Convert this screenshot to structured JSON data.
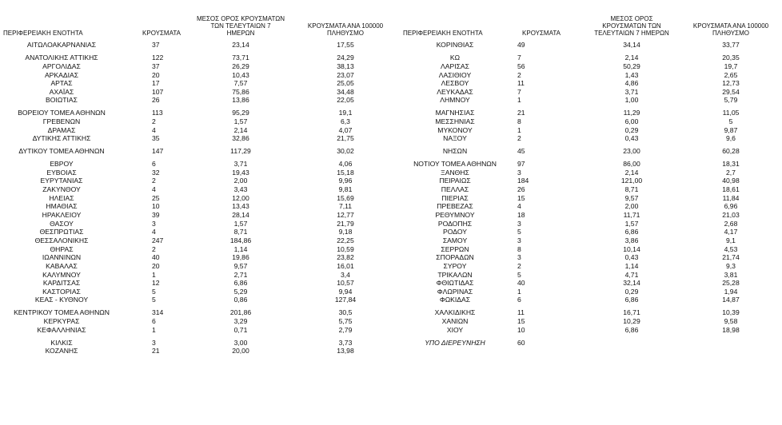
{
  "headers": {
    "name": "ΠΕΡΙΦΕΡΕΙΑΚΗ ΕΝΟΤΗΤΑ",
    "cases": "ΚΡΟΥΣΜΑΤΑ",
    "avg": "ΜΕΣΟΣ ΟΡΟΣ ΚΡΟΥΣΜΑΤΩΝ ΤΩΝ ΤΕΛΕΥΤΑΙΩΝ 7 ΗΜΕΡΩΝ",
    "per": "ΚΡΟΥΣΜΑΤΑ ΑΝΑ 100000 ΠΛΗΘΥΣΜΟ"
  },
  "left_rows": [
    {
      "name": "ΑΙΤΩΛΟΑΚΑΡΝΑΝΙΑΣ",
      "cases": "37",
      "avg": "23,14",
      "per": "17,55",
      "gap": true
    },
    {
      "name": "ΑΝΑΤΟΛΙΚΗΣ ΑΤΤΙΚΗΣ",
      "cases": "122",
      "avg": "73,71",
      "per": "24,29",
      "gap": true
    },
    {
      "name": "ΑΡΓΟΛΙΔΑΣ",
      "cases": "37",
      "avg": "26,29",
      "per": "38,13"
    },
    {
      "name": "ΑΡΚΑΔΙΑΣ",
      "cases": "20",
      "avg": "10,43",
      "per": "23,07"
    },
    {
      "name": "ΑΡΤΑΣ",
      "cases": "17",
      "avg": "7,57",
      "per": "25,05"
    },
    {
      "name": "ΑΧΑΪΑΣ",
      "cases": "107",
      "avg": "75,86",
      "per": "34,48"
    },
    {
      "name": "ΒΟΙΩΤΙΑΣ",
      "cases": "26",
      "avg": "13,86",
      "per": "22,05"
    },
    {
      "name": "ΒΟΡΕΙΟΥ ΤΟΜΕΑ ΑΘΗΝΩΝ",
      "cases": "113",
      "avg": "95,29",
      "per": "19,1",
      "gap": true
    },
    {
      "name": "ΓΡΕΒΕΝΩΝ",
      "cases": "2",
      "avg": "1,57",
      "per": "6,3"
    },
    {
      "name": "ΔΡΑΜΑΣ",
      "cases": "4",
      "avg": "2,14",
      "per": "4,07"
    },
    {
      "name": "ΔΥΤΙΚΗΣ ΑΤΤΙΚΗΣ",
      "cases": "35",
      "avg": "32,86",
      "per": "21,75"
    },
    {
      "name": "ΔΥΤΙΚΟΥ ΤΟΜΕΑ ΑΘΗΝΩΝ",
      "cases": "147",
      "avg": "117,29",
      "per": "30,02",
      "gap": true
    },
    {
      "name": "ΕΒΡΟΥ",
      "cases": "6",
      "avg": "3,71",
      "per": "4,06",
      "gap": true
    },
    {
      "name": "ΕΥΒΟΙΑΣ",
      "cases": "32",
      "avg": "19,43",
      "per": "15,18"
    },
    {
      "name": "ΕΥΡΥΤΑΝΙΑΣ",
      "cases": "2",
      "avg": "2,00",
      "per": "9,96"
    },
    {
      "name": "ΖΑΚΥΝΘΟΥ",
      "cases": "4",
      "avg": "3,43",
      "per": "9,81"
    },
    {
      "name": "ΗΛΕΙΑΣ",
      "cases": "25",
      "avg": "12,00",
      "per": "15,69"
    },
    {
      "name": "ΗΜΑΘΙΑΣ",
      "cases": "10",
      "avg": "13,43",
      "per": "7,11"
    },
    {
      "name": "ΗΡΑΚΛΕΙΟΥ",
      "cases": "39",
      "avg": "28,14",
      "per": "12,77"
    },
    {
      "name": "ΘΑΣΟΥ",
      "cases": "3",
      "avg": "1,57",
      "per": "21,79"
    },
    {
      "name": "ΘΕΣΠΡΩΤΙΑΣ",
      "cases": "4",
      "avg": "8,71",
      "per": "9,18"
    },
    {
      "name": "ΘΕΣΣΑΛΟΝΙΚΗΣ",
      "cases": "247",
      "avg": "184,86",
      "per": "22,25"
    },
    {
      "name": "ΘΗΡΑΣ",
      "cases": "2",
      "avg": "1,14",
      "per": "10,59"
    },
    {
      "name": "ΙΩΑΝΝΙΝΩΝ",
      "cases": "40",
      "avg": "19,86",
      "per": "23,82"
    },
    {
      "name": "ΚΑΒΑΛΑΣ",
      "cases": "20",
      "avg": "9,57",
      "per": "16,01"
    },
    {
      "name": "ΚΑΛΥΜΝΟΥ",
      "cases": "1",
      "avg": "2,71",
      "per": "3,4"
    },
    {
      "name": "ΚΑΡΔΙΤΣΑΣ",
      "cases": "12",
      "avg": "6,86",
      "per": "10,57"
    },
    {
      "name": "ΚΑΣΤΟΡΙΑΣ",
      "cases": "5",
      "avg": "5,29",
      "per": "9,94"
    },
    {
      "name": "ΚΕΑΣ - ΚΥΘΝΟΥ",
      "cases": "5",
      "avg": "0,86",
      "per": "127,84"
    },
    {
      "name": "ΚΕΝΤΡΙΚΟΥ ΤΟΜΕΑ ΑΘΗΝΩΝ",
      "cases": "314",
      "avg": "201,86",
      "per": "30,5",
      "gap": true
    },
    {
      "name": "ΚΕΡΚΥΡΑΣ",
      "cases": "6",
      "avg": "3,29",
      "per": "5,75"
    },
    {
      "name": "ΚΕΦΑΛΛΗΝΙΑΣ",
      "cases": "1",
      "avg": "0,71",
      "per": "2,79"
    },
    {
      "name": "ΚΙΛΚΙΣ",
      "cases": "3",
      "avg": "3,00",
      "per": "3,73",
      "gap": true
    },
    {
      "name": "ΚΟΖΑΝΗΣ",
      "cases": "21",
      "avg": "20,00",
      "per": "13,98"
    }
  ],
  "right_rows": [
    {
      "name": "ΚΟΡΙΝΘΙΑΣ",
      "cases": "49",
      "avg": "34,14",
      "per": "33,77",
      "gap": true
    },
    {
      "name": "ΚΩ",
      "cases": "7",
      "avg": "2,14",
      "per": "20,35",
      "gap": true
    },
    {
      "name": "ΛΑΡΙΣΑΣ",
      "cases": "56",
      "avg": "50,29",
      "per": "19,7"
    },
    {
      "name": "ΛΑΣΙΘΙΟΥ",
      "cases": "2",
      "avg": "1,43",
      "per": "2,65"
    },
    {
      "name": "ΛΕΣΒΟΥ",
      "cases": "11",
      "avg": "4,86",
      "per": "12,73"
    },
    {
      "name": "ΛΕΥΚΑΔΑΣ",
      "cases": "7",
      "avg": "3,71",
      "per": "29,54"
    },
    {
      "name": "ΛΗΜΝΟΥ",
      "cases": "1",
      "avg": "1,00",
      "per": "5,79"
    },
    {
      "name": "ΜΑΓΝΗΣΙΑΣ",
      "cases": "21",
      "avg": "11,29",
      "per": "11,05",
      "gap": true
    },
    {
      "name": "ΜΕΣΣΗΝΙΑΣ",
      "cases": "8",
      "avg": "6,00",
      "per": "5"
    },
    {
      "name": "ΜΥΚΟΝΟΥ",
      "cases": "1",
      "avg": "0,29",
      "per": "9,87"
    },
    {
      "name": "ΝΑΞΟΥ",
      "cases": "2",
      "avg": "0,43",
      "per": "9,6"
    },
    {
      "name": "ΝΗΣΩΝ",
      "cases": "45",
      "avg": "23,00",
      "per": "60,28",
      "gap": true
    },
    {
      "name": "ΝΟΤΙΟΥ ΤΟΜΕΑ ΑΘΗΝΩΝ",
      "cases": "97",
      "avg": "86,00",
      "per": "18,31",
      "gap": true
    },
    {
      "name": "ΞΑΝΘΗΣ",
      "cases": "3",
      "avg": "2,14",
      "per": "2,7"
    },
    {
      "name": "ΠΕΙΡΑΙΩΣ",
      "cases": "184",
      "avg": "121,00",
      "per": "40,98"
    },
    {
      "name": "ΠΕΛΛΑΣ",
      "cases": "26",
      "avg": "8,71",
      "per": "18,61"
    },
    {
      "name": "ΠΙΕΡΙΑΣ",
      "cases": "15",
      "avg": "9,57",
      "per": "11,84"
    },
    {
      "name": "ΠΡΕΒΕΖΑΣ",
      "cases": "4",
      "avg": "2,00",
      "per": "6,96"
    },
    {
      "name": "ΡΕΘΥΜΝΟΥ",
      "cases": "18",
      "avg": "11,71",
      "per": "21,03"
    },
    {
      "name": "ΡΟΔΟΠΗΣ",
      "cases": "3",
      "avg": "1,57",
      "per": "2,68"
    },
    {
      "name": "ΡΟΔΟΥ",
      "cases": "5",
      "avg": "6,86",
      "per": "4,17"
    },
    {
      "name": "ΣΑΜΟΥ",
      "cases": "3",
      "avg": "3,86",
      "per": "9,1"
    },
    {
      "name": "ΣΕΡΡΩΝ",
      "cases": "8",
      "avg": "10,14",
      "per": "4,53"
    },
    {
      "name": "ΣΠΟΡΑΔΩΝ",
      "cases": "3",
      "avg": "0,43",
      "per": "21,74"
    },
    {
      "name": "ΣΥΡΟΥ",
      "cases": "2",
      "avg": "1,14",
      "per": "9,3"
    },
    {
      "name": "ΤΡΙΚΑΛΩΝ",
      "cases": "5",
      "avg": "4,71",
      "per": "3,81"
    },
    {
      "name": "ΦΘΙΩΤΙΔΑΣ",
      "cases": "40",
      "avg": "32,14",
      "per": "25,28"
    },
    {
      "name": "ΦΛΩΡΙΝΑΣ",
      "cases": "1",
      "avg": "0,29",
      "per": "1,94"
    },
    {
      "name": "ΦΩΚΙΔΑΣ",
      "cases": "6",
      "avg": "6,86",
      "per": "14,87"
    },
    {
      "name": "ΧΑΛΚΙΔΙΚΗΣ",
      "cases": "11",
      "avg": "16,71",
      "per": "10,39",
      "gap": true
    },
    {
      "name": "ΧΑΝΙΩΝ",
      "cases": "15",
      "avg": "10,29",
      "per": "9,58"
    },
    {
      "name": "ΧΙΟΥ",
      "cases": "10",
      "avg": "6,86",
      "per": "18,98"
    },
    {
      "name": "ΥΠΟ ΔΙΕΡΕΥΝΗΣΗ",
      "cases": "60",
      "avg": "",
      "per": "",
      "gap": true,
      "italic": true
    }
  ]
}
